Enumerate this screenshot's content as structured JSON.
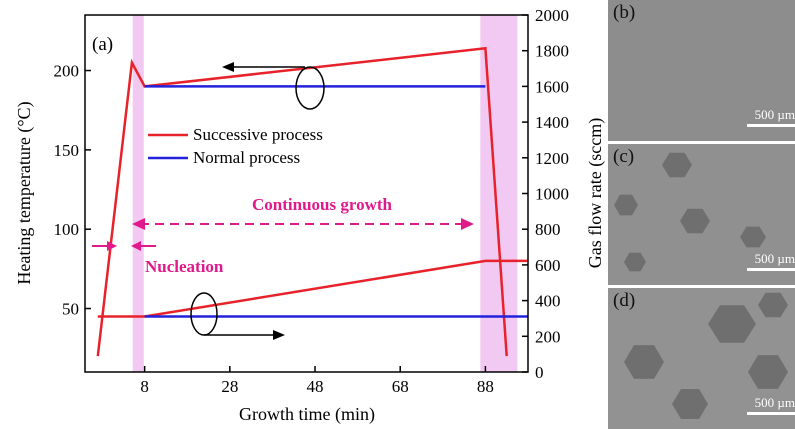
{
  "chart_data": {
    "type": "line",
    "panel_label": "(a)",
    "xlabel": "Growth time (min)",
    "ylabel_left": "Heating temperature (°C)",
    "ylabel_right": "Gas flow rate (sccm)",
    "xlim": [
      -6,
      98
    ],
    "ylim_left": [
      10,
      235
    ],
    "ylim_right": [
      0,
      2000
    ],
    "x_ticks": [
      8,
      28,
      48,
      68,
      88
    ],
    "y_ticks_left": [
      50,
      100,
      150,
      200
    ],
    "y_ticks_right": [
      0,
      200,
      400,
      600,
      800,
      1000,
      1200,
      1400,
      1600,
      1800,
      2000
    ],
    "grid": false,
    "legend_position": "upper-left",
    "series": [
      {
        "name": "Successive process",
        "axis": "left",
        "color": "#e8222a",
        "x": [
          -3,
          5,
          8,
          88,
          93
        ],
        "y": [
          20,
          205,
          190,
          214,
          20
        ]
      },
      {
        "name": "Normal process",
        "axis": "left",
        "color": "#2222dd",
        "x": [
          8,
          88
        ],
        "y": [
          190,
          190
        ]
      },
      {
        "axis": "left",
        "color": "#e8222a",
        "x": [
          -3,
          8,
          88,
          98
        ],
        "y": [
          45,
          45,
          80,
          80
        ]
      },
      {
        "axis": "left",
        "color": "#2222dd",
        "x": [
          8,
          98
        ],
        "y": [
          45,
          45
        ]
      }
    ],
    "shaded_regions": [
      {
        "axis": "x",
        "from": 5.2,
        "to": 7.8,
        "color": "#f2c9f2"
      },
      {
        "axis": "x",
        "from": 86.8,
        "to": 95.5,
        "color": "#f2c9f2"
      }
    ],
    "annotations": {
      "nucleation": "Nucleation",
      "continuous_growth": "Continuous growth"
    }
  },
  "micrographs": [
    {
      "label": "(b)",
      "scale_text": "500 µm"
    },
    {
      "label": "(c)",
      "scale_text": "500 µm"
    },
    {
      "label": "(d)",
      "scale_text": "500 µm"
    }
  ],
  "colors": {
    "red": "#e8222a",
    "blue": "#2222dd",
    "magenta": "#e01a8c",
    "shade": "#f2c9f2"
  }
}
